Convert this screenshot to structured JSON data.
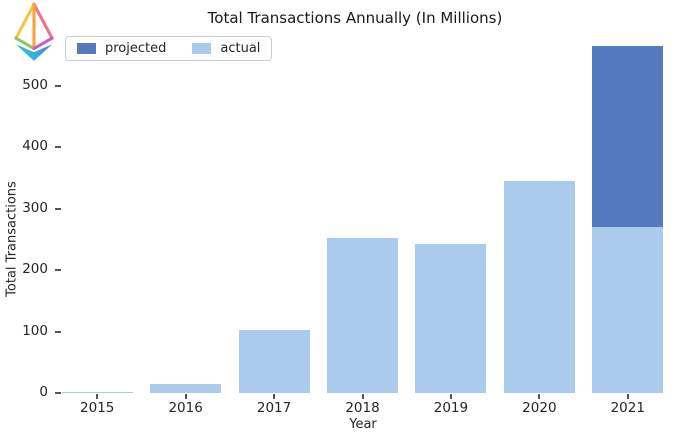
{
  "logo_icon": "ethereum-rainbow-icon",
  "chart_data": {
    "type": "bar",
    "stacked": true,
    "title": "Total Transactions Annually (In Millions)",
    "xlabel": "Year",
    "ylabel": "Total Transactions",
    "categories": [
      "2015",
      "2016",
      "2017",
      "2018",
      "2019",
      "2020",
      "2021"
    ],
    "series": [
      {
        "name": "projected",
        "color": "#5479bd",
        "values": [
          0,
          0,
          0,
          0,
          0,
          0,
          295
        ]
      },
      {
        "name": "actual",
        "color": "#abcbec",
        "values": [
          2,
          14,
          103,
          252,
          243,
          345,
          270
        ]
      }
    ],
    "projected_total_2021": 565,
    "yticks": [
      0,
      100,
      200,
      300,
      400,
      500
    ],
    "ylim": [
      0,
      570
    ],
    "grid": false,
    "legend_position": "upper-left"
  }
}
